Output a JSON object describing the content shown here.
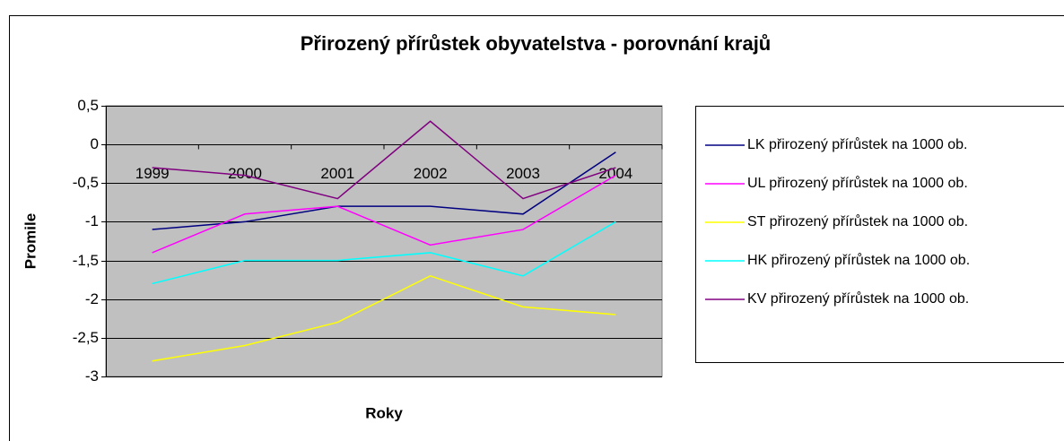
{
  "chart_data": {
    "type": "line",
    "title": "Přirozený přírůstek obyvatelstva - porovnání krajů",
    "x_label": "Roky",
    "y_label": "Promile",
    "categories": [
      "1999",
      "2000",
      "2001",
      "2002",
      "2003",
      "2004"
    ],
    "series": [
      {
        "name": "LK přirozený přírůstek na 1000 ob.",
        "color": "#000080",
        "values": [
          -1.1,
          -1.0,
          -0.8,
          -0.8,
          -0.9,
          -0.1
        ]
      },
      {
        "name": "UL přirozený přírůstek na 1000 ob.",
        "color": "#ff00ff",
        "values": [
          -1.4,
          -0.9,
          -0.8,
          -1.3,
          -1.1,
          -0.4
        ]
      },
      {
        "name": "ST přirozený přírůstek na 1000 ob.",
        "color": "#ffff00",
        "values": [
          -2.8,
          -2.6,
          -2.3,
          -1.7,
          -2.1,
          -2.2
        ]
      },
      {
        "name": "HK přirozený přírůstek na 1000 ob.",
        "color": "#00ffff",
        "values": [
          -1.8,
          -1.5,
          -1.5,
          -1.4,
          -1.7,
          -1.0
        ]
      },
      {
        "name": "KV přirozený přírůstek na 1000 ob.",
        "color": "#800080",
        "values": [
          -0.3,
          -0.4,
          -0.7,
          0.3,
          -0.7,
          -0.3
        ]
      }
    ],
    "ylim": [
      -3,
      0.5
    ],
    "yticks": [
      {
        "value": 0.5,
        "label": "0,5"
      },
      0,
      {
        "value": -0.5,
        "label": "-0,5"
      },
      -1,
      {
        "value": -1.5,
        "label": "-1,5"
      },
      -2,
      {
        "value": -2.5,
        "label": "-2,5"
      },
      -3
    ],
    "grid": true,
    "legend": "right",
    "plot_background": "#c0c0c0"
  }
}
